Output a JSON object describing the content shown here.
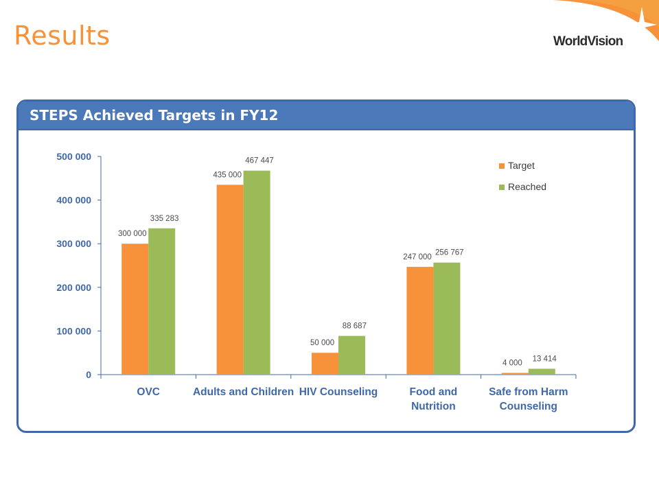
{
  "slide": {
    "title": "Results",
    "logo_text": "WorldVision"
  },
  "panel": {
    "header": "STEPS Achieved Targets in FY12"
  },
  "chart_data": {
    "type": "bar",
    "title": "",
    "xlabel": "",
    "ylabel": "",
    "categories": [
      "OVC",
      "Adults and Children",
      "HIV Counseling",
      "Food and Nutrition",
      "Safe from Harm Counseling"
    ],
    "category_lines": [
      [
        "OVC"
      ],
      [
        "Adults and Children"
      ],
      [
        "HIV Counseling"
      ],
      [
        "Food and",
        "Nutrition"
      ],
      [
        "Safe from Harm",
        "Counseling"
      ]
    ],
    "series": [
      {
        "name": "Target",
        "color": "#f7923a",
        "values": [
          300000,
          435000,
          50000,
          247000,
          4000
        ],
        "labels": [
          "300 000",
          "435 000",
          "50 000",
          "247 000",
          "4 000"
        ]
      },
      {
        "name": "Reached",
        "color": "#9bbb59",
        "values": [
          335283,
          467447,
          88687,
          256767,
          13414
        ],
        "labels": [
          "335 283",
          "467 447",
          "88 687",
          "256 767",
          "13 414"
        ]
      }
    ],
    "ylim": [
      0,
      500000
    ],
    "yticks": [
      0,
      100000,
      200000,
      300000,
      400000,
      500000
    ],
    "ytick_labels": [
      "0",
      "100 000",
      "200 000",
      "300 000",
      "400 000",
      "500 000"
    ],
    "grid": false,
    "legend_position": "top-right",
    "axis_color": "#3f68a8",
    "label_color": "#3f68a8"
  }
}
